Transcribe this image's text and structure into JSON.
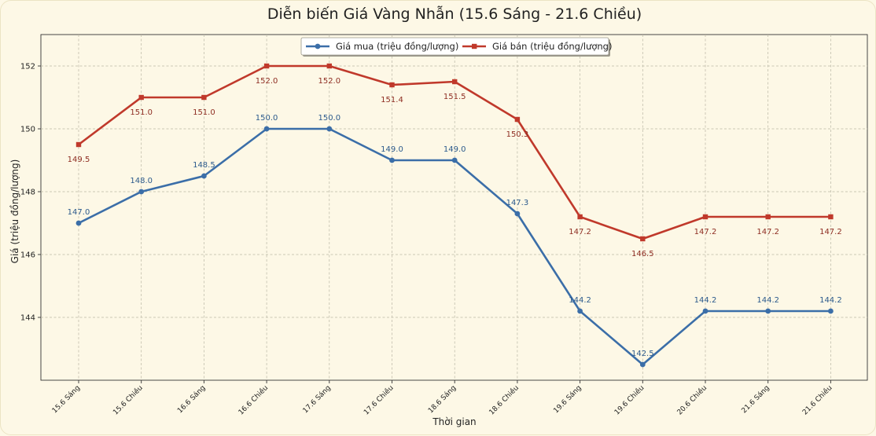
{
  "chart_data": {
    "type": "line",
    "title": "Diễn biến Giá Vàng Nhẫn (15.6 Sáng - 21.6 Chiều)",
    "xlabel": "Thời gian",
    "ylabel": "Giá (triệu đồng/lượng)",
    "categories": [
      "15.6 Sáng",
      "15.6 Chiều",
      "16.6 Sáng",
      "16.6 Chiều",
      "17.6 Sáng",
      "17.6 Chiều",
      "18.6 Sáng",
      "18.6 Chiều",
      "19.6 Sáng",
      "19.6 Chiều",
      "20.6 Chiều",
      "21.6 Sáng",
      "21.6 Chiều"
    ],
    "ylim": [
      142.0,
      153.0
    ],
    "yticks": [
      144,
      146,
      148,
      150,
      152
    ],
    "grid": true,
    "legend_position": "top-center",
    "series": [
      {
        "name": "Giá mua (triệu đồng/lượng)",
        "color": "#3b6ea8",
        "marker": "circle",
        "values": [
          147.0,
          148.0,
          148.5,
          150.0,
          150.0,
          149.0,
          149.0,
          147.3,
          144.2,
          142.5,
          144.2,
          144.2,
          144.2
        ],
        "labels": [
          "147.0",
          "148.0",
          "148.5",
          "150.0",
          "150.0",
          "149.0",
          "149.0",
          "147.3",
          "144.2",
          "142.5",
          "144.2",
          "144.2",
          "144.2"
        ]
      },
      {
        "name": "Giá bán (triệu đồng/lượng)",
        "color": "#c0392b",
        "marker": "square",
        "values": [
          149.5,
          151.0,
          151.0,
          152.0,
          152.0,
          151.4,
          151.5,
          150.3,
          147.2,
          146.5,
          147.2,
          147.2,
          147.2
        ],
        "labels": [
          "149.5",
          "151.0",
          "151.0",
          "152.0",
          "152.0",
          "151.4",
          "151.5",
          "150.3",
          "147.2",
          "146.5",
          "147.2",
          "147.2",
          "147.2"
        ]
      }
    ]
  }
}
